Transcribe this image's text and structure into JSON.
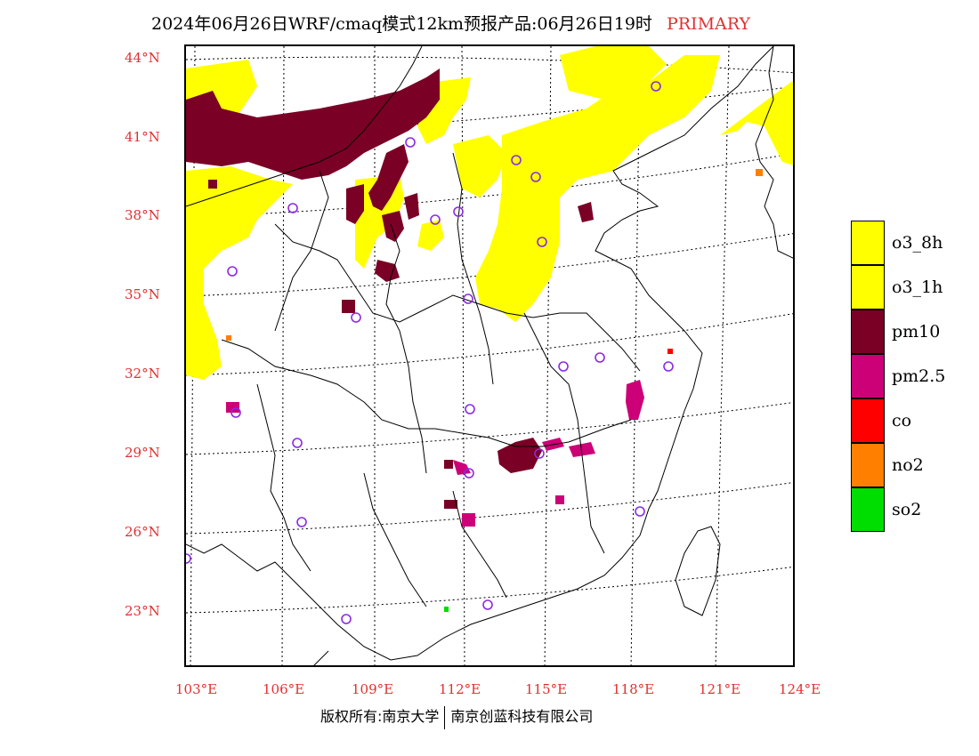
{
  "title": {
    "main": "2024年06月26日WRF/cmaq模式12km预报产品:06月26日19时",
    "tag": "PRIMARY"
  },
  "colors": {
    "o3": "#ffff00",
    "pm10": "#7a0026",
    "pm25": "#cc0077",
    "co": "#ff0000",
    "no2": "#ff7f00",
    "so2": "#00dd00",
    "label_red": "#e03030",
    "station": "#8a2be2"
  },
  "latitude_labels": [
    "44°N",
    "41°N",
    "38°N",
    "35°N",
    "32°N",
    "29°N",
    "26°N",
    "23°N"
  ],
  "longitude_labels": [
    "103°E",
    "106°E",
    "109°E",
    "112°E",
    "115°E",
    "118°E",
    "121°E",
    "124°E"
  ],
  "legend": [
    {
      "label": "o3_8h",
      "color": "#ffff00"
    },
    {
      "label": "o3_1h",
      "color": "#ffff00"
    },
    {
      "label": "pm10",
      "color": "#7a0026"
    },
    {
      "label": "pm2.5",
      "color": "#cc0077"
    },
    {
      "label": "co",
      "color": "#ff0000"
    },
    {
      "label": "no2",
      "color": "#ff7f00"
    },
    {
      "label": "so2",
      "color": "#00dd00"
    }
  ],
  "footer": {
    "left": "版权所有:南京大学",
    "right": "南京创蓝科技有限公司"
  }
}
